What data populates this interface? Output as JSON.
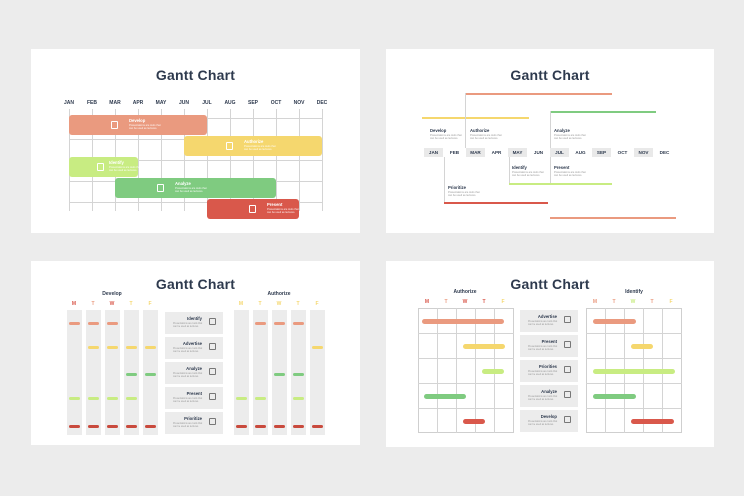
{
  "colors": {
    "develop": "#ea9a7f",
    "authorize": "#f5d76e",
    "identify": "#c8ec82",
    "analyze": "#7fcb80",
    "present": "#d9584b",
    "prioritize": "#c94a3d"
  },
  "slide1": {
    "title": "Gantt Chart",
    "months": [
      "JAN",
      "FEB",
      "MAR",
      "APR",
      "MAY",
      "JUN",
      "JUL",
      "AUG",
      "SEP",
      "OCT",
      "NOV",
      "DEC"
    ],
    "tasks": [
      {
        "label": "Develop",
        "sub": "Presentations are tools that can be used as lectures.",
        "start": 0,
        "end": 6,
        "row": 0,
        "color": "#ea9a7f",
        "icon": "document-icon"
      },
      {
        "label": "Authorize",
        "sub": "Presentations are tools that can be used as lectures.",
        "start": 5,
        "end": 11,
        "row": 1,
        "color": "#f5d76e",
        "icon": "signpost-icon"
      },
      {
        "label": "Identify",
        "sub": "Presentations are tools that can be used as lectures.",
        "start": 0,
        "end": 3,
        "row": 2,
        "color": "#c8ec82",
        "icon": "clipboard-icon"
      },
      {
        "label": "Analyze",
        "sub": "Presentations are tools that can be used as lectures.",
        "start": 2,
        "end": 9,
        "row": 3,
        "color": "#7fcb80",
        "icon": "flask-icon"
      },
      {
        "label": "Present",
        "sub": "Presentations are tools that can be used as lectures.",
        "start": 6,
        "end": 10,
        "row": 4,
        "color": "#d9584b",
        "icon": "piggy-bank-icon"
      }
    ]
  },
  "slide2": {
    "title": "Gantt Chart",
    "months": [
      "JAN",
      "FEB",
      "MAR",
      "APR",
      "MAY",
      "JUN",
      "JUL",
      "AUG",
      "SEP",
      "OCT",
      "NOV",
      "DEC"
    ],
    "tasks": [
      {
        "label": "Develop",
        "sub": "Presentations are tools that can be used as lectures.",
        "color": "#f5d76e"
      },
      {
        "label": "Authorize",
        "sub": "Presentations are tools that can be used as lectures.",
        "color": "#ea9a7f"
      },
      {
        "label": "Analyze",
        "sub": "Presentations are tools that can be used as lectures.",
        "color": "#7fcb80"
      },
      {
        "label": "Identify",
        "sub": "Presentations are tools that can be used as lectures.",
        "color": "#c8ec82"
      },
      {
        "label": "Present",
        "sub": "Presentations are tools that can be used as lectures.",
        "color": "#c8ec82"
      },
      {
        "label": "Prioritize",
        "sub": "Presentations are tools that can be used as lectures.",
        "color": "#d9584b"
      }
    ]
  },
  "slide3": {
    "title": "Gantt Chart",
    "left_group": "Develop",
    "right_group": "Authorize",
    "days": [
      "M",
      "T",
      "W",
      "T",
      "F"
    ],
    "tasks": [
      {
        "label": "Identify",
        "sub": "Presentations are tools that can be used as lectures.",
        "icon": "windmill-icon"
      },
      {
        "label": "Advertise",
        "sub": "Presentations are tools that can be used as lectures.",
        "icon": "piggy-bank-icon"
      },
      {
        "label": "Analyze",
        "sub": "Presentations are tools that can be used as lectures.",
        "icon": "chart-icon"
      },
      {
        "label": "Present",
        "sub": "Presentations are tools that can be used as lectures.",
        "icon": "podium-icon"
      },
      {
        "label": "Prioritize",
        "sub": "Presentations are tools that can be used as lectures.",
        "icon": "search-icon"
      }
    ]
  },
  "slide4": {
    "title": "Gantt Chart",
    "left_group": "Authorize",
    "right_group": "Identify",
    "days": [
      "M",
      "T",
      "W",
      "T",
      "F"
    ],
    "tasks": [
      {
        "label": "Advertise",
        "sub": "Presentations are tools that can be used as lectures.",
        "icon": "wallet-icon"
      },
      {
        "label": "Present",
        "sub": "Presentations are tools that can be used as lectures.",
        "icon": "wallet-icon"
      },
      {
        "label": "Priorities",
        "sub": "Presentations are tools that can be used as lectures.",
        "icon": "calculator-icon"
      },
      {
        "label": "Analyze",
        "sub": "Presentations are tools that can be used as lectures.",
        "icon": "pen-icon"
      },
      {
        "label": "Develop",
        "sub": "Presentations are tools that can be used as lectures.",
        "icon": "scale-icon"
      }
    ]
  }
}
